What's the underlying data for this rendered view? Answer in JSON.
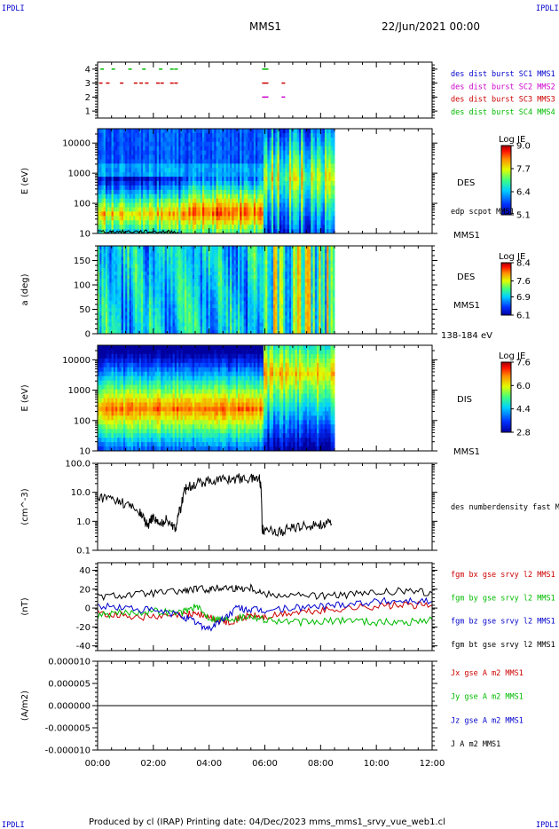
{
  "header": {
    "left_tag": "IPDLI",
    "right_tag": "IPDLI",
    "title": "MMS1",
    "date": "22/Jun/2021 00:00"
  },
  "footer": {
    "text": "Produced by cl (IRAP)   Printing date: 04/Dec/2023   mms_mms1_srvy_vue_web1.cl",
    "left_tag": "IPDLI",
    "right_tag": "IPDLI"
  },
  "colors": {
    "blue": "#0000cc",
    "magenta": "#cc00cc",
    "red": "#cc0000",
    "green": "#00bb00",
    "black": "#000000"
  },
  "chart_data": [
    {
      "type": "scatter",
      "id": "burst",
      "title": "",
      "ylabel": "",
      "ylim": [
        0.5,
        4.5
      ],
      "yticks": [
        "1",
        "2",
        "3",
        "4"
      ],
      "legend": [
        {
          "label": "des dist burst SC1 MMS1",
          "color": "#0000cc"
        },
        {
          "label": "des dist burst SC2 MMS2",
          "color": "#cc00cc"
        },
        {
          "label": "des dist burst SC3 MMS3",
          "color": "#cc0000"
        },
        {
          "label": "des dist burst SC4 MMS4",
          "color": "#00bb00"
        }
      ],
      "series": [
        {
          "name": "des dist burst SC4 MMS4",
          "color": "#00bb00",
          "y": 4,
          "x": [
            0.1,
            0.5,
            1.1,
            1.6,
            2.2,
            2.6,
            2.75,
            5.9,
            6.0
          ]
        },
        {
          "name": "des dist burst SC3 MMS3",
          "color": "#cc0000",
          "y": 3,
          "x": [
            0.05,
            0.3,
            0.8,
            1.3,
            1.5,
            1.7,
            2.1,
            2.25,
            2.6,
            2.75,
            5.9,
            6.0,
            6.6
          ]
        },
        {
          "name": "des dist burst SC2 MMS2",
          "color": "#cc00cc",
          "y": 2,
          "x": [
            5.9,
            6.0,
            6.6
          ]
        }
      ]
    },
    {
      "type": "heatmap",
      "id": "des_e",
      "ylabel": "E (eV)",
      "yscale": "log",
      "ylim": [
        10,
        30000
      ],
      "yticks": [
        "10",
        "100",
        "1000",
        "10000"
      ],
      "right_labels": [
        "DES",
        "edp scpot MMS1",
        "MMS1"
      ],
      "colorbar": {
        "title": "Log JE",
        "ticks": [
          "9.0",
          "7.7",
          "6.4",
          "5.1"
        ],
        "range": [
          5.1,
          9.0
        ]
      },
      "xlim": [
        0,
        12
      ],
      "data_end": 8.5
    },
    {
      "type": "heatmap",
      "id": "des_pa",
      "ylabel": "a (deg)",
      "ylim": [
        0,
        180
      ],
      "yticks": [
        "0",
        "50",
        "100",
        "150"
      ],
      "right_labels": [
        "DES",
        "MMS1",
        "138-184 eV"
      ],
      "colorbar": {
        "title": "Log JE",
        "ticks": [
          "8.4",
          "7.6",
          "6.9",
          "6.1"
        ],
        "range": [
          6.1,
          8.4
        ]
      },
      "xlim": [
        0,
        12
      ],
      "data_end": 8.5
    },
    {
      "type": "heatmap",
      "id": "dis_e",
      "ylabel": "E (eV)",
      "yscale": "log",
      "ylim": [
        10,
        30000
      ],
      "yticks": [
        "10",
        "100",
        "1000",
        "10000"
      ],
      "right_labels": [
        "DIS",
        "MMS1"
      ],
      "colorbar": {
        "title": "Log JE",
        "ticks": [
          "7.6",
          "6.0",
          "4.4",
          "2.8"
        ],
        "range": [
          2.8,
          7.6
        ]
      },
      "xlim": [
        0,
        12
      ],
      "data_end": 8.5
    },
    {
      "type": "line",
      "id": "density",
      "ylabel": "(cm^-3)",
      "yscale": "log",
      "ylim": [
        0.1,
        100
      ],
      "yticks": [
        "0.1",
        "1.0",
        "10.0",
        "100.0"
      ],
      "legend": [
        {
          "label": "des numberdensity fast M",
          "color": "#000000"
        }
      ],
      "series": [
        {
          "name": "des numberdensity fast M",
          "color": "#000000",
          "x": [
            0,
            0.5,
            1.0,
            1.5,
            1.8,
            2.0,
            2.2,
            2.5,
            2.8,
            3.0,
            3.2,
            3.5,
            4.0,
            4.5,
            5.0,
            5.5,
            5.8,
            5.9,
            6.0,
            6.5,
            7.0,
            7.5,
            8.0,
            8.4
          ],
          "y": [
            7,
            6,
            4,
            2,
            0.6,
            1.5,
            0.7,
            1.2,
            0.5,
            3,
            15,
            20,
            25,
            28,
            30,
            30,
            32,
            0.5,
            0.55,
            0.4,
            0.6,
            0.7,
            0.8,
            0.8
          ]
        }
      ]
    },
    {
      "type": "line",
      "id": "fgm",
      "ylabel": "(nT)",
      "ylim": [
        -45,
        48
      ],
      "yticks": [
        "-40",
        "-20",
        "0",
        "20",
        "40"
      ],
      "legend": [
        {
          "label": "fgm bx gse srvy l2 MMS1",
          "color": "#cc0000"
        },
        {
          "label": "fgm by gse srvy l2 MMS1",
          "color": "#00bb00"
        },
        {
          "label": "fgm bz gse srvy l2 MMS1",
          "color": "#0000cc"
        },
        {
          "label": "fgm bt gse srvy l2 MMS1",
          "color": "#000000"
        }
      ],
      "series": [
        {
          "name": "fgm bx gse srvy l2 MMS1",
          "color": "#cc0000",
          "x": [
            0,
            1,
            2,
            3,
            3.5,
            4,
            4.5,
            5,
            5.5,
            6,
            7,
            8,
            9,
            10,
            11,
            12
          ],
          "y": [
            -5,
            -8,
            -10,
            -8,
            -5,
            -10,
            -15,
            -12,
            -8,
            -10,
            -5,
            -3,
            0,
            2,
            3,
            3
          ]
        },
        {
          "name": "fgm by gse srvy l2 MMS1",
          "color": "#00bb00",
          "x": [
            0,
            1,
            2,
            3,
            3.5,
            4,
            4.5,
            5,
            5.5,
            6,
            7,
            8,
            9,
            10,
            11,
            12
          ],
          "y": [
            -8,
            -5,
            -3,
            -5,
            2,
            -10,
            -12,
            -10,
            -8,
            -12,
            -15,
            -15,
            -12,
            -15,
            -15,
            -12
          ]
        },
        {
          "name": "fgm bz gse srvy l2 MMS1",
          "color": "#0000cc",
          "x": [
            0,
            1,
            2,
            3,
            3.5,
            4,
            4.5,
            5,
            5.5,
            6,
            7,
            8,
            9,
            10,
            11,
            12
          ],
          "y": [
            2,
            0,
            -3,
            -8,
            -15,
            -22,
            -12,
            0,
            -2,
            -3,
            0,
            2,
            5,
            7,
            8,
            7
          ]
        },
        {
          "name": "fgm bt gse srvy l2 MMS1",
          "color": "#000000",
          "x": [
            0,
            1,
            2,
            3,
            3.5,
            4,
            4.5,
            5,
            5.5,
            6,
            7,
            8,
            9,
            10,
            11,
            12
          ],
          "y": [
            12,
            14,
            16,
            18,
            20,
            20,
            22,
            21,
            22,
            15,
            14,
            13,
            14,
            16,
            18,
            16
          ]
        }
      ]
    },
    {
      "type": "line",
      "id": "current",
      "ylabel": "(A/m2)",
      "ylim": [
        -1e-05,
        1e-05
      ],
      "yticks": [
        "-0.000010",
        "-0.000005",
        "0.000000",
        "0.000005",
        "0.000010"
      ],
      "legend": [
        {
          "label": "Jx gse A m2 MMS1",
          "color": "#cc0000"
        },
        {
          "label": "Jy gse A m2 MMS1",
          "color": "#00bb00"
        },
        {
          "label": "Jz gse A m2 MMS1",
          "color": "#0000cc"
        },
        {
          "label": "J A m2 MMS1",
          "color": "#000000"
        }
      ],
      "series": [
        {
          "name": "J A m2 MMS1",
          "color": "#000000",
          "x": [
            0,
            12
          ],
          "y": [
            0,
            0
          ]
        }
      ]
    }
  ],
  "xaxis": {
    "ticks": [
      "00:00",
      "02:00",
      "04:00",
      "06:00",
      "08:00",
      "10:00",
      "12:00"
    ],
    "xlim": [
      0,
      12
    ]
  }
}
